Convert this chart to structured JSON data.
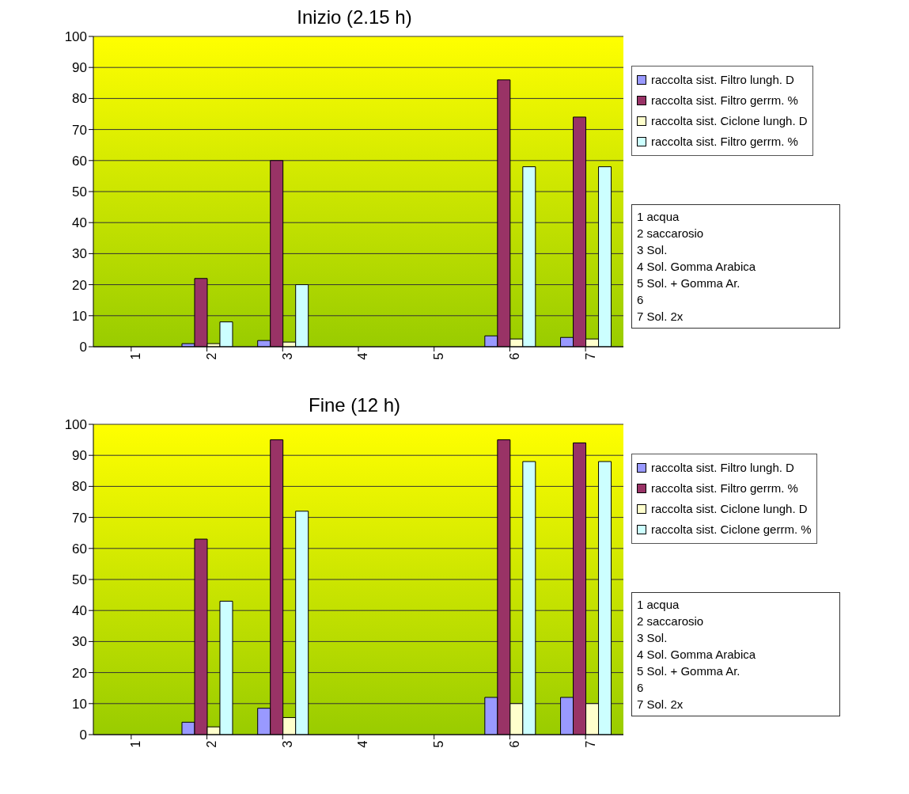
{
  "chart_data": [
    {
      "type": "bar",
      "title": "Inizio (2.15 h)",
      "categories": [
        "1",
        "2",
        "3",
        "4",
        "5",
        "6",
        "7"
      ],
      "series": [
        {
          "name": "raccolta sist. Filtro lungh. D",
          "color": "#9999ff",
          "values": [
            null,
            1,
            2,
            null,
            null,
            3.5,
            3
          ]
        },
        {
          "name": "raccolta sist. Filtro gerrm. %",
          "color": "#993366",
          "values": [
            null,
            22,
            60,
            null,
            null,
            86,
            74
          ]
        },
        {
          "name": "raccolta sist. Ciclone lungh. D",
          "color": "#ffffcc",
          "values": [
            null,
            1,
            1.5,
            null,
            null,
            2.5,
            2.5
          ]
        },
        {
          "name": "raccolta sist. Filtro gerrm. %",
          "color": "#ccffff",
          "values": [
            null,
            8,
            20,
            null,
            null,
            58,
            58
          ]
        }
      ],
      "ylim": [
        0,
        100
      ],
      "yticks": [
        0,
        10,
        20,
        30,
        40,
        50,
        60,
        70,
        80,
        90,
        100
      ],
      "grid": "y",
      "legend": "right",
      "annotations": [
        "1 acqua",
        "2 saccarosio",
        "3 Sol.",
        "4 Sol. Gomma Arabica",
        "5 Sol. + Gomma Ar.",
        "6",
        "7 Sol. 2x"
      ]
    },
    {
      "type": "bar",
      "title": "Fine (12 h)",
      "categories": [
        "1",
        "2",
        "3",
        "4",
        "5",
        "6",
        "7"
      ],
      "series": [
        {
          "name": "raccolta sist. Filtro lungh. D",
          "color": "#9999ff",
          "values": [
            null,
            4,
            8.5,
            null,
            null,
            12,
            12
          ]
        },
        {
          "name": "raccolta sist. Filtro gerrm. %",
          "color": "#993366",
          "values": [
            null,
            63,
            95,
            null,
            null,
            95,
            94
          ]
        },
        {
          "name": "raccolta sist. Ciclone lungh. D",
          "color": "#ffffcc",
          "values": [
            null,
            2.5,
            5.5,
            null,
            null,
            10,
            10
          ]
        },
        {
          "name": "raccolta sist. Ciclone gerrm. %",
          "color": "#ccffff",
          "values": [
            null,
            43,
            72,
            null,
            null,
            88,
            88
          ]
        }
      ],
      "ylim": [
        0,
        100
      ],
      "yticks": [
        0,
        10,
        20,
        30,
        40,
        50,
        60,
        70,
        80,
        90,
        100
      ],
      "grid": "y",
      "legend": "right",
      "annotations": [
        "1 acqua",
        "2 saccarosio",
        "3 Sol.",
        "4 Sol. Gomma Arabica",
        "5 Sol. + Gomma Ar.",
        "6",
        "7 Sol. 2x"
      ]
    }
  ]
}
